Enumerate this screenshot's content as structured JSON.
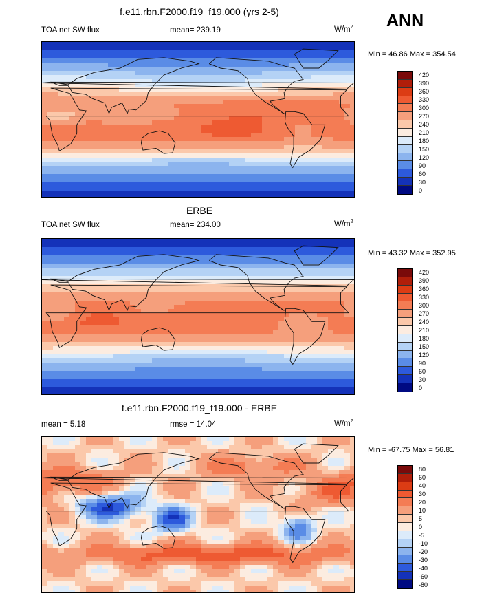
{
  "season": "ANN",
  "panels": [
    {
      "title": "f.e11.rbn.F2000.f19_f19.000 (yrs 2-5)",
      "left_label": "TOA net SW flux",
      "center_label": "mean= 239.19",
      "units": "W/m",
      "units_sup": "2",
      "minmax": "Min =  46.86 Max = 354.54",
      "field": "model",
      "colorbar": {
        "ticks": [
          "420",
          "390",
          "360",
          "330",
          "300",
          "270",
          "240",
          "210",
          "180",
          "150",
          "120",
          "90",
          "60",
          "30",
          "0"
        ],
        "colors": [
          "#7a0a0a",
          "#b01e0a",
          "#dc3c14",
          "#ee5a32",
          "#f47c54",
          "#f59f7c",
          "#fbc8aa",
          "#fcece0",
          "#dcebfa",
          "#b4d2f5",
          "#8cb4ee",
          "#5a8ce6",
          "#2d5adc",
          "#1432b9",
          "#000a82"
        ]
      }
    },
    {
      "title": "ERBE",
      "left_label": "TOA net SW flux",
      "center_label": "mean= 234.00",
      "units": "W/m",
      "units_sup": "2",
      "minmax": "Min =  43.32 Max = 352.95",
      "field": "obs",
      "colorbar": {
        "ticks": [
          "420",
          "390",
          "360",
          "330",
          "300",
          "270",
          "240",
          "210",
          "180",
          "150",
          "120",
          "90",
          "60",
          "30",
          "0"
        ],
        "colors": [
          "#7a0a0a",
          "#b01e0a",
          "#dc3c14",
          "#ee5a32",
          "#f47c54",
          "#f59f7c",
          "#fbc8aa",
          "#fcece0",
          "#dcebfa",
          "#b4d2f5",
          "#8cb4ee",
          "#5a8ce6",
          "#2d5adc",
          "#1432b9",
          "#000a82"
        ]
      }
    },
    {
      "title": "f.e11.rbn.F2000.f19_f19.000 - ERBE",
      "left_label": "mean =   5.18",
      "center_label": "rmse =  14.04",
      "units": "W/m",
      "units_sup": "2",
      "minmax": "Min = -67.75 Max =  56.81",
      "field": "diff",
      "colorbar": {
        "ticks": [
          "80",
          "60",
          "40",
          "30",
          "20",
          "10",
          "5",
          "0",
          "-5",
          "-10",
          "-20",
          "-30",
          "-40",
          "-60",
          "-80"
        ],
        "colors": [
          "#7a0a0a",
          "#b01e0a",
          "#dc3c14",
          "#ee5a32",
          "#f47c54",
          "#f59f7c",
          "#fbc8aa",
          "#fcece0",
          "#dcebfa",
          "#b4d2f5",
          "#8cb4ee",
          "#5a8ce6",
          "#2d5adc",
          "#1432b9",
          "#000a82"
        ]
      }
    }
  ]
}
